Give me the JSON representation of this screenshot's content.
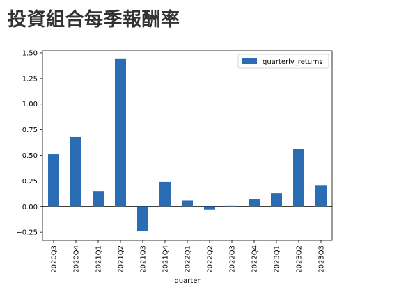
{
  "page": {
    "title": "投資組合每季報酬率"
  },
  "chart_data": {
    "type": "bar",
    "categories": [
      "2020Q3",
      "2020Q4",
      "2021Q1",
      "2021Q2",
      "2021Q3",
      "2021Q4",
      "2022Q1",
      "2022Q2",
      "2022Q3",
      "2022Q4",
      "2023Q1",
      "2023Q2",
      "2023Q3"
    ],
    "series": [
      {
        "name": "quarterly_returns",
        "values": [
          0.51,
          0.68,
          0.15,
          1.44,
          -0.24,
          0.24,
          0.06,
          -0.03,
          0.01,
          0.07,
          0.13,
          0.56,
          0.21
        ]
      }
    ],
    "xlabel": "quarter",
    "ylabel": "",
    "ylim": [
      -0.33,
      1.52
    ],
    "yticks": [
      -0.25,
      0.0,
      0.25,
      0.5,
      0.75,
      1.0,
      1.25,
      1.5
    ],
    "ytick_labels": [
      "−0.25",
      "0.00",
      "0.25",
      "0.50",
      "0.75",
      "1.00",
      "1.25",
      "1.50"
    ],
    "grid": false,
    "legend_position": "top-right",
    "bar_color": "#2a6db5"
  }
}
